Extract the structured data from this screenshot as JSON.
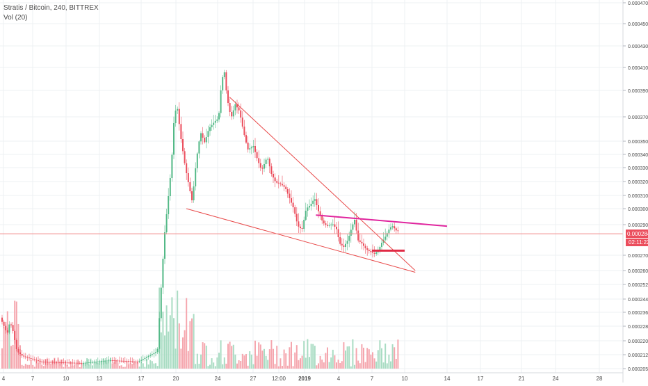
{
  "header": {
    "symbol_line": "Stratis / Bitcoin, 240, BITTREX",
    "volume_label": "Vol (20)"
  },
  "price_badge": {
    "price": "0.00028405",
    "countdown": "02:11:22"
  },
  "colors": {
    "up": "#53b987",
    "down": "#eb4d5c",
    "up_volume": "#a9dcc3",
    "down_volume": "#f5a6ae",
    "trendline": "#e84a4a",
    "resistance": "#e0259e",
    "support": "#e02a45",
    "grid": "#eef0f3",
    "axis_text": "#4a4a4a"
  },
  "chart_data": {
    "type": "candlestick",
    "price_axis_ticks": [
      "0.00047000",
      "0.00045000",
      "0.00043000",
      "0.00041000",
      "0.00039000",
      "0.00037000",
      "0.00035000",
      "0.00034000",
      "0.00033000",
      "0.00032000",
      "0.00031000",
      "0.00030000",
      "0.00029000",
      "0.00027000",
      "0.00026000",
      "0.00025200",
      "0.00024400",
      "0.00023600",
      "0.00022800",
      "0.00022000",
      "0.00021200",
      "0.00020500"
    ],
    "time_axis_ticks": [
      "4",
      "7",
      "10",
      "13",
      "17",
      "20",
      "24",
      "27",
      "12:00",
      "2019",
      "4",
      "7",
      "10",
      "14",
      "17",
      "21",
      "24",
      "28"
    ],
    "last_price": 0.00028405,
    "annotations": [
      {
        "name": "upper-descending-trendline",
        "from": {
          "time": "Dec 25",
          "price": 0.000385
        },
        "to": {
          "time": "Jan 11",
          "price": 0.00026
        }
      },
      {
        "name": "lower-descending-trendline",
        "from": {
          "time": "Dec 21",
          "price": 0.0003
        },
        "to": {
          "time": "Jan 11",
          "price": 0.000259
        }
      },
      {
        "name": "resistance-line",
        "from": {
          "time": "Jan 2",
          "price": 0.000296
        },
        "to": {
          "time": "Jan 14",
          "price": 0.000289
        }
      },
      {
        "name": "support-line",
        "from": {
          "time": "Jan 7",
          "price": 0.000273
        },
        "to": {
          "time": "Jan 10",
          "price": 0.000273
        }
      }
    ]
  }
}
